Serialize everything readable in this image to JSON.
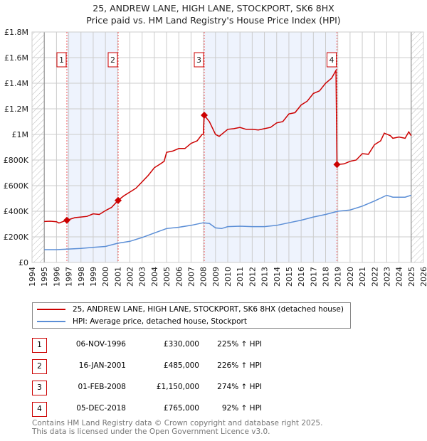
{
  "title": "25, ANDREW LANE, HIGH LANE, STOCKPORT, SK6 8HX",
  "subtitle": "Price paid vs. HM Land Registry's House Price Index (HPI)",
  "chart_data": {
    "type": "line",
    "xlim": [
      1994,
      2026
    ],
    "ylim": [
      0,
      1800000
    ],
    "yticks": [
      {
        "v": 0,
        "label": "£0"
      },
      {
        "v": 200000,
        "label": "£200K"
      },
      {
        "v": 400000,
        "label": "£400K"
      },
      {
        "v": 600000,
        "label": "£600K"
      },
      {
        "v": 800000,
        "label": "£800K"
      },
      {
        "v": 1000000,
        "label": "£1M"
      },
      {
        "v": 1200000,
        "label": "£1.2M"
      },
      {
        "v": 1400000,
        "label": "£1.4M"
      },
      {
        "v": 1600000,
        "label": "£1.6M"
      },
      {
        "v": 1800000,
        "label": "£1.8M"
      }
    ],
    "xticks": [
      "1994",
      "1995",
      "1996",
      "1997",
      "1998",
      "1999",
      "2000",
      "2001",
      "2002",
      "2003",
      "2004",
      "2005",
      "2006",
      "2007",
      "2008",
      "2009",
      "2010",
      "2011",
      "2012",
      "2013",
      "2014",
      "2015",
      "2016",
      "2017",
      "2018",
      "2019",
      "2020",
      "2021",
      "2022",
      "2023",
      "2024",
      "2025",
      "2026"
    ],
    "series": [
      {
        "name": "25, ANDREW LANE, HIGH LANE, STOCKPORT, SK6 8HX (detached house)",
        "color": "#cc0000",
        "x": [
          1995,
          1995.5,
          1996,
          1996.2,
          1996.85,
          1997.5,
          1998,
          1998.5,
          1999,
          1999.5,
          2000,
          2000.5,
          2001.04,
          2001.5,
          2002,
          2002.5,
          2003,
          2003.5,
          2004,
          2004.5,
          2004.8,
          2005,
          2005.5,
          2006,
          2006.5,
          2007,
          2007.5,
          2007.9,
          2008.0,
          2008.08,
          2008.5,
          2009,
          2009.3,
          2010,
          2010.5,
          2011,
          2011.5,
          2012,
          2012.5,
          2013,
          2013.5,
          2014,
          2014.5,
          2015,
          2015.5,
          2016,
          2016.5,
          2017,
          2017.5,
          2018,
          2018.5,
          2018.85,
          2018.93,
          2019.5,
          2020,
          2020.5,
          2021,
          2021.5,
          2022,
          2022.5,
          2022.8,
          2023.3,
          2023.5,
          2024,
          2024.5,
          2024.8,
          2025
        ],
        "y": [
          320000,
          322000,
          318000,
          308000,
          330000,
          350000,
          355000,
          360000,
          380000,
          375000,
          405000,
          430000,
          485000,
          520000,
          550000,
          580000,
          630000,
          680000,
          740000,
          770000,
          790000,
          860000,
          870000,
          890000,
          890000,
          930000,
          950000,
          1000000,
          1000000,
          1150000,
          1100000,
          1000000,
          985000,
          1040000,
          1045000,
          1055000,
          1040000,
          1040000,
          1035000,
          1045000,
          1055000,
          1090000,
          1100000,
          1160000,
          1170000,
          1230000,
          1260000,
          1320000,
          1340000,
          1400000,
          1440000,
          1500000,
          765000,
          770000,
          790000,
          800000,
          850000,
          845000,
          920000,
          950000,
          1010000,
          990000,
          970000,
          980000,
          970000,
          1020000,
          990000
        ]
      },
      {
        "name": "HPI: Average price, detached house, Stockport",
        "color": "#5b8ed6",
        "x": [
          1995,
          1996,
          1997,
          1998,
          1999,
          2000,
          2001,
          2002,
          2003,
          2004,
          2005,
          2006,
          2007,
          2008,
          2008.5,
          2009,
          2009.5,
          2010,
          2011,
          2012,
          2013,
          2014,
          2015,
          2016,
          2017,
          2018,
          2019,
          2020,
          2021,
          2022,
          2023,
          2023.5,
          2024,
          2024.5,
          2025
        ],
        "y": [
          100000,
          100000,
          105000,
          110000,
          118000,
          125000,
          150000,
          165000,
          195000,
          230000,
          265000,
          275000,
          290000,
          310000,
          305000,
          270000,
          265000,
          280000,
          283000,
          280000,
          280000,
          290000,
          310000,
          330000,
          355000,
          375000,
          400000,
          410000,
          440000,
          480000,
          525000,
          510000,
          510000,
          510000,
          525000
        ]
      }
    ],
    "sales": [
      {
        "num": "1",
        "x": 1996.85,
        "date": "06-NOV-1996",
        "price": "£330,000",
        "value": 330000,
        "hpi": "225% ↑ HPI"
      },
      {
        "num": "2",
        "x": 2001.04,
        "date": "16-JAN-2001",
        "price": "£485,000",
        "value": 485000,
        "hpi": "226% ↑ HPI"
      },
      {
        "num": "3",
        "x": 2008.08,
        "date": "01-FEB-2008",
        "price": "£1,150,000",
        "value": 1150000,
        "hpi": "274% ↑ HPI"
      },
      {
        "num": "4",
        "x": 2018.93,
        "date": "05-DEC-2018",
        "price": "£765,000",
        "value": 765000,
        "hpi": "92% ↑ HPI"
      }
    ],
    "shaded_ranges": [
      [
        1996.85,
        2001.04
      ],
      [
        2008.08,
        2018.93
      ]
    ],
    "hatched_ranges": [
      [
        1994,
        1995
      ],
      [
        2025,
        2026
      ]
    ]
  },
  "footer": [
    "Contains HM Land Registry data © Crown copyright and database right 2025.",
    "This data is licensed under the Open Government Licence v3.0."
  ]
}
